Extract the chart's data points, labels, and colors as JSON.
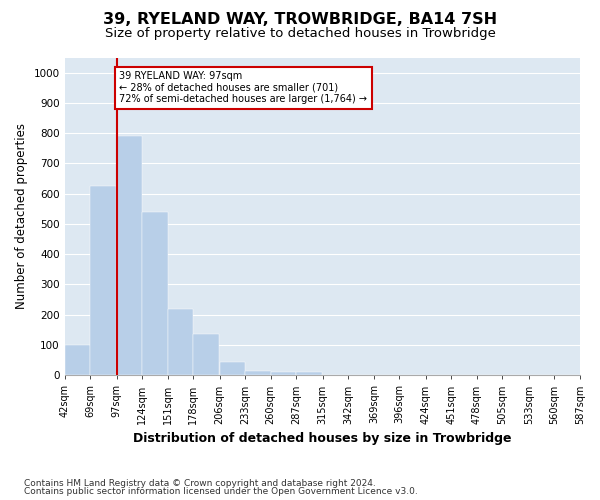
{
  "title": "39, RYELAND WAY, TROWBRIDGE, BA14 7SH",
  "subtitle": "Size of property relative to detached houses in Trowbridge",
  "xlabel": "Distribution of detached houses by size in Trowbridge",
  "ylabel": "Number of detached properties",
  "footnote1": "Contains HM Land Registry data © Crown copyright and database right 2024.",
  "footnote2": "Contains public sector information licensed under the Open Government Licence v3.0.",
  "bins": [
    42,
    69,
    97,
    124,
    151,
    178,
    206,
    233,
    260,
    287,
    315,
    342,
    369,
    396,
    424,
    451,
    478,
    505,
    533,
    560,
    587
  ],
  "bar_labels": [
    "42sqm",
    "69sqm",
    "97sqm",
    "124sqm",
    "151sqm",
    "178sqm",
    "206sqm",
    "233sqm",
    "260sqm",
    "287sqm",
    "315sqm",
    "342sqm",
    "369sqm",
    "396sqm",
    "424sqm",
    "451sqm",
    "478sqm",
    "505sqm",
    "533sqm",
    "560sqm",
    "587sqm"
  ],
  "values": [
    100,
    625,
    790,
    540,
    220,
    135,
    45,
    15,
    10,
    10,
    0,
    0,
    0,
    0,
    0,
    0,
    0,
    0,
    0,
    0
  ],
  "bar_color": "#b8cfe8",
  "redline_x": 97,
  "annotation_text": "39 RYELAND WAY: 97sqm\n← 28% of detached houses are smaller (701)\n72% of semi-detached houses are larger (1,764) →",
  "annotation_box_color": "white",
  "annotation_box_edge_color": "#cc0000",
  "redline_color": "#cc0000",
  "plot_bg_color": "#dde8f2",
  "ylim": [
    0,
    1050
  ],
  "yticks": [
    0,
    100,
    200,
    300,
    400,
    500,
    600,
    700,
    800,
    900,
    1000
  ],
  "grid_color": "white",
  "title_fontsize": 11.5,
  "subtitle_fontsize": 9.5,
  "xlabel_fontsize": 9,
  "ylabel_fontsize": 8.5,
  "tick_fontsize": 7.5,
  "footnote_fontsize": 6.5
}
